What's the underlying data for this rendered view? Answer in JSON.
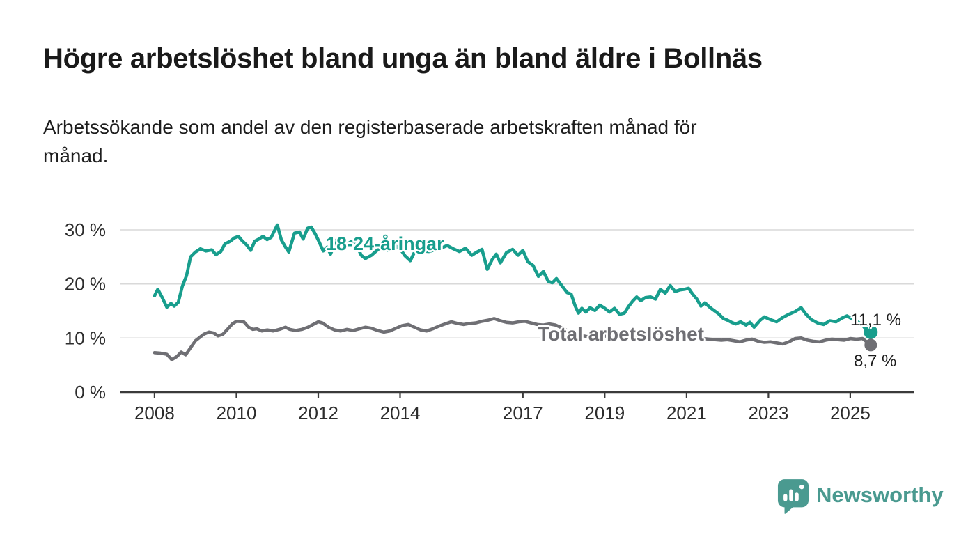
{
  "header": {
    "title": "Högre arbetslöshet bland unga än bland äldre i Bollnäs",
    "subtitle_line1": "Arbetssökande som andel av den registerbaserade arbetskraften månad för",
    "subtitle_line2": "månad."
  },
  "chart_data": {
    "type": "line",
    "title": "Högre arbetslöshet bland unga än bland äldre i Bollnäs",
    "subtitle": "Arbetssökande som andel av den registerbaserade arbetskraften månad för månad.",
    "x_axis": {
      "tick_values": [
        2008,
        2010,
        2012,
        2014,
        2017,
        2019,
        2021,
        2023,
        2025
      ],
      "tick_labels": [
        "2008",
        "2010",
        "2012",
        "2014",
        "2017",
        "2019",
        "2021",
        "2023",
        "2025"
      ],
      "range": [
        2007.15,
        2026.55
      ]
    },
    "y_axis": {
      "tick_values": [
        0,
        10,
        20,
        30
      ],
      "tick_labels": [
        "0 %",
        "10 %",
        "20 %",
        "30 %"
      ],
      "range": [
        0,
        32
      ],
      "gridlines": true
    },
    "colors": {
      "grid": "#d9d9d9",
      "axis": "#3a3a3a",
      "tick_text": "#2d2d2d"
    },
    "series": [
      {
        "name": "18-24-åringar",
        "color": "#189e8d",
        "end_label": "11,1 %",
        "end_value": 11.1,
        "points": [
          [
            2008.0,
            17.8
          ],
          [
            2008.08,
            19.0
          ],
          [
            2008.18,
            17.6
          ],
          [
            2008.3,
            15.7
          ],
          [
            2008.4,
            16.4
          ],
          [
            2008.48,
            15.9
          ],
          [
            2008.58,
            16.6
          ],
          [
            2008.68,
            19.6
          ],
          [
            2008.78,
            21.5
          ],
          [
            2008.88,
            25.0
          ],
          [
            2009.0,
            25.9
          ],
          [
            2009.12,
            26.5
          ],
          [
            2009.25,
            26.1
          ],
          [
            2009.4,
            26.3
          ],
          [
            2009.5,
            25.4
          ],
          [
            2009.62,
            26.0
          ],
          [
            2009.72,
            27.4
          ],
          [
            2009.85,
            27.9
          ],
          [
            2009.95,
            28.5
          ],
          [
            2010.05,
            28.8
          ],
          [
            2010.15,
            27.9
          ],
          [
            2010.25,
            27.2
          ],
          [
            2010.35,
            26.2
          ],
          [
            2010.45,
            27.9
          ],
          [
            2010.55,
            28.3
          ],
          [
            2010.65,
            28.8
          ],
          [
            2010.75,
            28.2
          ],
          [
            2010.85,
            28.6
          ],
          [
            2011.0,
            30.9
          ],
          [
            2011.1,
            28.1
          ],
          [
            2011.2,
            26.8
          ],
          [
            2011.28,
            25.9
          ],
          [
            2011.42,
            29.4
          ],
          [
            2011.54,
            29.6
          ],
          [
            2011.63,
            28.3
          ],
          [
            2011.74,
            30.3
          ],
          [
            2011.83,
            30.5
          ],
          [
            2011.93,
            29.2
          ],
          [
            2012.02,
            27.8
          ],
          [
            2012.12,
            26.1
          ],
          [
            2012.22,
            26.8
          ],
          [
            2012.3,
            25.5
          ],
          [
            2012.44,
            28.1
          ],
          [
            2012.56,
            28.3
          ],
          [
            2012.68,
            27.2
          ],
          [
            2012.8,
            27.8
          ],
          [
            2012.92,
            27.4
          ],
          [
            2013.05,
            25.3
          ],
          [
            2013.15,
            24.7
          ],
          [
            2013.3,
            25.3
          ],
          [
            2013.45,
            26.3
          ],
          [
            2013.55,
            26.9
          ],
          [
            2013.7,
            26.2
          ],
          [
            2013.85,
            27.2
          ],
          [
            2014.0,
            26.5
          ],
          [
            2014.12,
            25.2
          ],
          [
            2014.25,
            24.3
          ],
          [
            2014.4,
            26.6
          ],
          [
            2014.55,
            26.1
          ],
          [
            2014.7,
            26.0
          ],
          [
            2014.85,
            26.3
          ],
          [
            2015.0,
            26.6
          ],
          [
            2015.15,
            27.1
          ],
          [
            2015.3,
            26.5
          ],
          [
            2015.45,
            26.0
          ],
          [
            2015.6,
            26.6
          ],
          [
            2015.75,
            25.3
          ],
          [
            2015.9,
            26.0
          ],
          [
            2016.0,
            26.4
          ],
          [
            2016.13,
            22.7
          ],
          [
            2016.25,
            24.5
          ],
          [
            2016.35,
            25.5
          ],
          [
            2016.45,
            23.9
          ],
          [
            2016.6,
            25.8
          ],
          [
            2016.75,
            26.4
          ],
          [
            2016.88,
            25.3
          ],
          [
            2017.0,
            26.2
          ],
          [
            2017.12,
            24.1
          ],
          [
            2017.25,
            23.4
          ],
          [
            2017.38,
            21.4
          ],
          [
            2017.5,
            22.3
          ],
          [
            2017.62,
            20.5
          ],
          [
            2017.72,
            20.2
          ],
          [
            2017.82,
            21.0
          ],
          [
            2017.95,
            19.7
          ],
          [
            2018.08,
            18.4
          ],
          [
            2018.18,
            18.1
          ],
          [
            2018.28,
            15.9
          ],
          [
            2018.36,
            14.6
          ],
          [
            2018.44,
            15.5
          ],
          [
            2018.54,
            14.8
          ],
          [
            2018.64,
            15.6
          ],
          [
            2018.76,
            15.1
          ],
          [
            2018.88,
            16.1
          ],
          [
            2019.0,
            15.5
          ],
          [
            2019.12,
            14.8
          ],
          [
            2019.24,
            15.5
          ],
          [
            2019.36,
            14.4
          ],
          [
            2019.48,
            14.6
          ],
          [
            2019.58,
            15.8
          ],
          [
            2019.68,
            16.8
          ],
          [
            2019.78,
            17.6
          ],
          [
            2019.88,
            16.9
          ],
          [
            2020.0,
            17.5
          ],
          [
            2020.12,
            17.6
          ],
          [
            2020.24,
            17.2
          ],
          [
            2020.36,
            19.0
          ],
          [
            2020.48,
            18.3
          ],
          [
            2020.6,
            19.7
          ],
          [
            2020.72,
            18.6
          ],
          [
            2020.84,
            18.9
          ],
          [
            2020.95,
            19.0
          ],
          [
            2021.05,
            19.2
          ],
          [
            2021.15,
            18.1
          ],
          [
            2021.25,
            17.2
          ],
          [
            2021.35,
            15.9
          ],
          [
            2021.45,
            16.5
          ],
          [
            2021.55,
            15.8
          ],
          [
            2021.65,
            15.2
          ],
          [
            2021.78,
            14.5
          ],
          [
            2021.9,
            13.6
          ],
          [
            2022.0,
            13.3
          ],
          [
            2022.1,
            12.9
          ],
          [
            2022.2,
            12.6
          ],
          [
            2022.32,
            13.0
          ],
          [
            2022.45,
            12.4
          ],
          [
            2022.55,
            12.9
          ],
          [
            2022.65,
            12.0
          ],
          [
            2022.8,
            13.3
          ],
          [
            2022.9,
            13.9
          ],
          [
            2023.05,
            13.4
          ],
          [
            2023.2,
            13.0
          ],
          [
            2023.35,
            13.8
          ],
          [
            2023.5,
            14.4
          ],
          [
            2023.65,
            14.9
          ],
          [
            2023.8,
            15.6
          ],
          [
            2023.92,
            14.4
          ],
          [
            2024.05,
            13.4
          ],
          [
            2024.2,
            12.8
          ],
          [
            2024.35,
            12.5
          ],
          [
            2024.5,
            13.2
          ],
          [
            2024.65,
            13.0
          ],
          [
            2024.8,
            13.7
          ],
          [
            2024.92,
            14.1
          ],
          [
            2025.05,
            13.5
          ],
          [
            2025.18,
            13.0
          ],
          [
            2025.3,
            12.4
          ],
          [
            2025.38,
            11.6
          ],
          [
            2025.44,
            12.2
          ],
          [
            2025.5,
            11.1
          ]
        ]
      },
      {
        "name": "Total arbetslöshet",
        "color": "#6f6f74",
        "end_label": "8,7 %",
        "end_value": 8.7,
        "points": [
          [
            2008.0,
            7.3
          ],
          [
            2008.15,
            7.2
          ],
          [
            2008.3,
            7.0
          ],
          [
            2008.42,
            6.0
          ],
          [
            2008.55,
            6.6
          ],
          [
            2008.65,
            7.4
          ],
          [
            2008.76,
            6.9
          ],
          [
            2008.87,
            8.1
          ],
          [
            2009.0,
            9.5
          ],
          [
            2009.1,
            10.1
          ],
          [
            2009.2,
            10.7
          ],
          [
            2009.33,
            11.1
          ],
          [
            2009.45,
            10.9
          ],
          [
            2009.55,
            10.4
          ],
          [
            2009.67,
            10.7
          ],
          [
            2009.78,
            11.6
          ],
          [
            2009.9,
            12.6
          ],
          [
            2010.0,
            13.1
          ],
          [
            2010.18,
            13.0
          ],
          [
            2010.3,
            12.0
          ],
          [
            2010.4,
            11.6
          ],
          [
            2010.5,
            11.7
          ],
          [
            2010.62,
            11.3
          ],
          [
            2010.75,
            11.5
          ],
          [
            2010.9,
            11.3
          ],
          [
            2011.05,
            11.6
          ],
          [
            2011.2,
            12.0
          ],
          [
            2011.3,
            11.6
          ],
          [
            2011.45,
            11.4
          ],
          [
            2011.6,
            11.6
          ],
          [
            2011.75,
            12.0
          ],
          [
            2011.9,
            12.6
          ],
          [
            2012.0,
            13.0
          ],
          [
            2012.1,
            12.8
          ],
          [
            2012.25,
            12.0
          ],
          [
            2012.4,
            11.5
          ],
          [
            2012.55,
            11.3
          ],
          [
            2012.7,
            11.6
          ],
          [
            2012.85,
            11.4
          ],
          [
            2013.0,
            11.7
          ],
          [
            2013.15,
            12.0
          ],
          [
            2013.3,
            11.8
          ],
          [
            2013.45,
            11.4
          ],
          [
            2013.6,
            11.1
          ],
          [
            2013.75,
            11.3
          ],
          [
            2013.9,
            11.8
          ],
          [
            2014.05,
            12.3
          ],
          [
            2014.2,
            12.5
          ],
          [
            2014.35,
            12.0
          ],
          [
            2014.5,
            11.5
          ],
          [
            2014.65,
            11.3
          ],
          [
            2014.8,
            11.7
          ],
          [
            2014.95,
            12.2
          ],
          [
            2015.1,
            12.6
          ],
          [
            2015.25,
            13.0
          ],
          [
            2015.4,
            12.7
          ],
          [
            2015.55,
            12.5
          ],
          [
            2015.7,
            12.7
          ],
          [
            2015.85,
            12.8
          ],
          [
            2016.0,
            13.1
          ],
          [
            2016.15,
            13.3
          ],
          [
            2016.3,
            13.6
          ],
          [
            2016.45,
            13.2
          ],
          [
            2016.6,
            12.9
          ],
          [
            2016.75,
            12.8
          ],
          [
            2016.9,
            13.0
          ],
          [
            2017.05,
            13.1
          ],
          [
            2017.2,
            12.8
          ],
          [
            2017.35,
            12.5
          ],
          [
            2017.5,
            12.4
          ],
          [
            2017.65,
            12.6
          ],
          [
            2017.8,
            12.4
          ],
          [
            2017.95,
            11.9
          ],
          [
            2018.1,
            11.3
          ],
          [
            2018.25,
            10.8
          ],
          [
            2018.4,
            10.5
          ],
          [
            2018.55,
            10.3
          ],
          [
            2018.7,
            10.2
          ],
          [
            2018.85,
            10.4
          ],
          [
            2019.0,
            10.4
          ],
          [
            2019.15,
            10.2
          ],
          [
            2019.3,
            10.0
          ],
          [
            2019.45,
            9.9
          ],
          [
            2019.6,
            10.0
          ],
          [
            2019.75,
            10.2
          ],
          [
            2019.9,
            10.4
          ],
          [
            2020.05,
            10.6
          ],
          [
            2020.2,
            10.8
          ],
          [
            2020.35,
            11.0
          ],
          [
            2020.5,
            11.0
          ],
          [
            2020.65,
            10.8
          ],
          [
            2020.8,
            10.6
          ],
          [
            2020.95,
            10.5
          ],
          [
            2021.1,
            10.4
          ],
          [
            2021.25,
            10.1
          ],
          [
            2021.4,
            9.9
          ],
          [
            2021.55,
            9.8
          ],
          [
            2021.7,
            9.7
          ],
          [
            2021.85,
            9.6
          ],
          [
            2022.0,
            9.7
          ],
          [
            2022.15,
            9.5
          ],
          [
            2022.3,
            9.3
          ],
          [
            2022.45,
            9.6
          ],
          [
            2022.6,
            9.8
          ],
          [
            2022.75,
            9.4
          ],
          [
            2022.9,
            9.2
          ],
          [
            2023.05,
            9.3
          ],
          [
            2023.2,
            9.1
          ],
          [
            2023.35,
            8.9
          ],
          [
            2023.5,
            9.3
          ],
          [
            2023.65,
            9.9
          ],
          [
            2023.8,
            10.0
          ],
          [
            2023.95,
            9.6
          ],
          [
            2024.1,
            9.4
          ],
          [
            2024.25,
            9.3
          ],
          [
            2024.4,
            9.6
          ],
          [
            2024.55,
            9.8
          ],
          [
            2024.7,
            9.7
          ],
          [
            2024.85,
            9.6
          ],
          [
            2025.0,
            9.9
          ],
          [
            2025.15,
            9.8
          ],
          [
            2025.3,
            9.9
          ],
          [
            2025.5,
            8.7
          ]
        ]
      }
    ],
    "legend_position": "inline-labels"
  },
  "footer": {
    "brand": "Newsworthy",
    "brand_color": "#4a9a90"
  }
}
